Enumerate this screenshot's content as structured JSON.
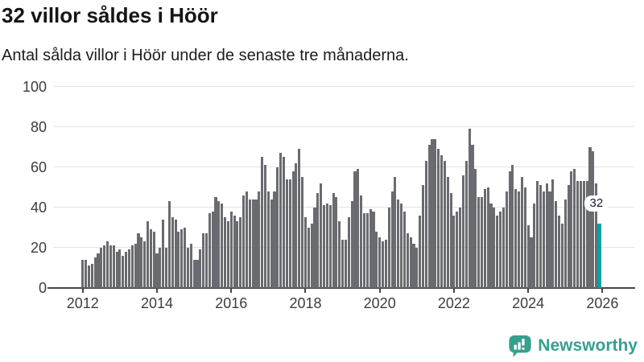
{
  "header": {
    "title": "32 villor såldes i Höör",
    "subtitle": "Antal sålda villor i Höör under de senaste tre månaderna."
  },
  "chart_data": {
    "type": "bar",
    "title": "32 villor såldes i Höör",
    "subtitle": "Antal sålda villor i Höör under de senaste tre månaderna.",
    "frequency": "monthly",
    "x_start": "2012-01",
    "x_end": "2025-12",
    "ylim": [
      0,
      100
    ],
    "yticks": [
      0,
      20,
      40,
      60,
      80,
      100
    ],
    "xticks": [
      2012,
      2014,
      2016,
      2018,
      2020,
      2022,
      2024,
      2026
    ],
    "grid": "horizontal",
    "legend": "none",
    "bar_color": "#6a6b70",
    "highlight_color": "#00a5a1",
    "highlight": {
      "month": "2025-12",
      "value": 32,
      "label": "32"
    },
    "series_by_year": [
      {
        "year": 2012,
        "values": [
          14,
          14,
          11,
          12,
          15,
          17,
          20,
          21,
          23,
          21,
          21,
          18
        ]
      },
      {
        "year": 2013,
        "values": [
          19,
          16,
          18,
          19,
          21,
          22,
          27,
          25,
          23,
          33,
          29,
          28
        ]
      },
      {
        "year": 2014,
        "values": [
          17,
          20,
          34,
          20,
          43,
          35,
          34,
          28,
          29,
          30,
          20,
          22
        ]
      },
      {
        "year": 2015,
        "values": [
          14,
          14,
          19,
          27,
          27,
          37,
          38,
          45,
          43,
          42,
          35,
          33
        ]
      },
      {
        "year": 2016,
        "values": [
          38,
          36,
          33,
          35,
          46,
          48,
          44,
          44,
          44,
          48,
          65,
          61
        ]
      },
      {
        "year": 2017,
        "values": [
          48,
          44,
          48,
          60,
          67,
          65,
          54,
          54,
          58,
          62,
          69,
          55
        ]
      },
      {
        "year": 2018,
        "values": [
          35,
          30,
          32,
          40,
          47,
          52,
          41,
          42,
          41,
          47,
          45,
          33
        ]
      },
      {
        "year": 2019,
        "values": [
          24,
          24,
          35,
          43,
          58,
          59,
          46,
          37,
          37,
          39,
          38,
          28
        ]
      },
      {
        "year": 2020,
        "values": [
          25,
          23,
          24,
          40,
          48,
          55,
          44,
          42,
          38,
          27,
          25,
          22
        ]
      },
      {
        "year": 2021,
        "values": [
          20,
          36,
          51,
          63,
          71,
          74,
          74,
          69,
          66,
          63,
          55,
          47
        ]
      },
      {
        "year": 2022,
        "values": [
          36,
          38,
          40,
          56,
          63,
          79,
          71,
          59,
          45,
          45,
          49,
          50
        ]
      },
      {
        "year": 2023,
        "values": [
          42,
          40,
          36,
          38,
          40,
          48,
          58,
          61,
          49,
          48,
          55,
          50
        ]
      },
      {
        "year": 2024,
        "values": [
          31,
          25,
          42,
          53,
          51,
          48,
          52,
          48,
          54,
          43,
          36,
          32
        ]
      },
      {
        "year": 2025,
        "values": [
          44,
          51,
          58,
          59,
          53,
          53,
          53,
          53,
          70,
          68,
          52,
          32
        ]
      }
    ]
  },
  "logo": {
    "text": "Newsworthy",
    "icon": "newsworthy-speech-bubble-chart-icon",
    "color": "#35a08e"
  }
}
